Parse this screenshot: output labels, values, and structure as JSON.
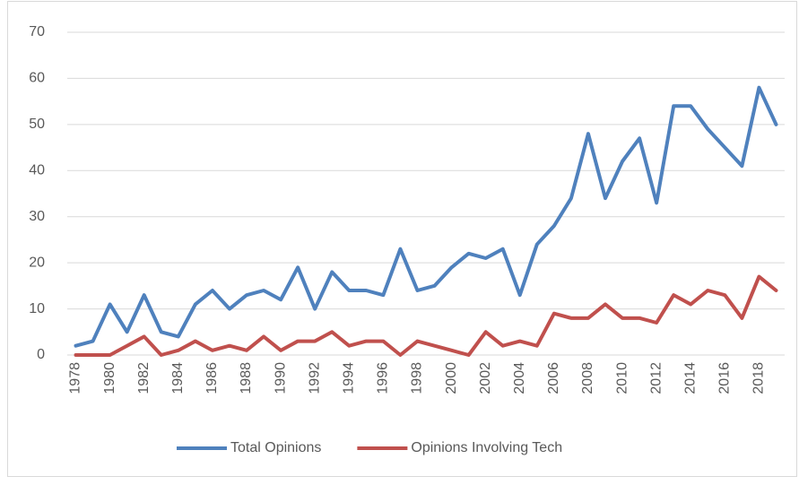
{
  "chart_data": {
    "type": "line",
    "categories": [
      "1978",
      null,
      "1980",
      null,
      "1982",
      null,
      "1984",
      null,
      "1986",
      null,
      "1988",
      null,
      "1990",
      null,
      "1992",
      null,
      "1994",
      null,
      "1996",
      null,
      "1998",
      null,
      "2000",
      null,
      "2002",
      null,
      "2004",
      null,
      "2006",
      null,
      "2008",
      null,
      "2010",
      null,
      "2012",
      null,
      "2014",
      null,
      "2016",
      null,
      "2018",
      null
    ],
    "series": [
      {
        "name": "Total Opinions",
        "color": "#4f81bd",
        "values": [
          2,
          3,
          11,
          5,
          13,
          5,
          4,
          11,
          14,
          10,
          13,
          14,
          12,
          19,
          10,
          18,
          14,
          14,
          13,
          23,
          14,
          15,
          19,
          22,
          21,
          23,
          13,
          24,
          28,
          34,
          48,
          34,
          42,
          47,
          33,
          54,
          54,
          49,
          45,
          41,
          58,
          50
        ]
      },
      {
        "name": "Opinions Involving Tech",
        "color": "#c0504d",
        "values": [
          0,
          0,
          0,
          2,
          4,
          0,
          1,
          3,
          1,
          2,
          1,
          4,
          1,
          3,
          3,
          5,
          2,
          3,
          3,
          0,
          3,
          2,
          1,
          0,
          5,
          2,
          3,
          2,
          9,
          8,
          8,
          11,
          8,
          8,
          7,
          13,
          11,
          14,
          13,
          8,
          17,
          14
        ]
      }
    ],
    "ylim": [
      0,
      70
    ],
    "yticks": [
      0,
      10,
      20,
      30,
      40,
      50,
      60,
      70
    ],
    "grid": true,
    "legend": "bottom"
  }
}
